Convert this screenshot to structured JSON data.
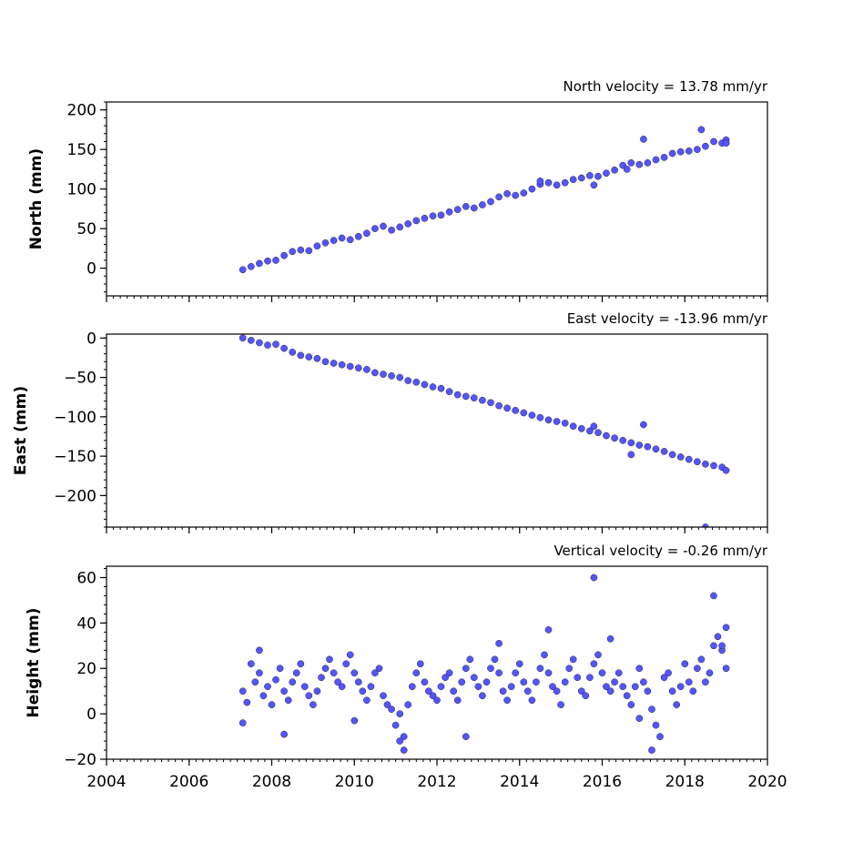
{
  "chart_data": [
    {
      "type": "scatter",
      "title": "North velocity = 13.78 mm/yr",
      "xlabel": "",
      "ylabel": "North (mm)",
      "xlim": [
        2004,
        2020
      ],
      "ylim": [
        -35,
        210
      ],
      "yticks": [
        0,
        50,
        100,
        150,
        200
      ],
      "xticks": [
        2004,
        2006,
        2008,
        2010,
        2012,
        2014,
        2016,
        2018,
        2020
      ],
      "show_xtick_labels": false,
      "grid": false,
      "marker_color": "#5555ff",
      "marker_edge": "#222244",
      "series": [
        {
          "x": [
            2007.3,
            2007.5,
            2007.7,
            2007.9,
            2008.1,
            2008.3,
            2008.5,
            2008.7,
            2008.9,
            2009.1,
            2009.3,
            2009.5,
            2009.7,
            2009.9,
            2010.1,
            2010.3,
            2010.5,
            2010.7,
            2010.9,
            2011.1,
            2011.3,
            2011.5,
            2011.7,
            2011.9,
            2012.1,
            2012.3,
            2012.5,
            2012.7,
            2012.9,
            2013.1,
            2013.3,
            2013.5,
            2013.7,
            2013.9,
            2014.1,
            2014.3,
            2014.5,
            2014.7,
            2014.9,
            2015.1,
            2015.3,
            2015.5,
            2015.7,
            2015.9,
            2016.1,
            2016.3,
            2016.5,
            2016.7,
            2016.9,
            2017.1,
            2017.3,
            2017.5,
            2017.7,
            2017.9,
            2018.1,
            2018.3,
            2018.5,
            2018.7,
            2018.9,
            2019.0,
            2017.0,
            2018.4,
            2016.6,
            2014.5,
            2015.8,
            2019.0
          ],
          "y": [
            -2,
            2,
            6,
            9,
            10,
            16,
            21,
            23,
            22,
            28,
            32,
            35,
            38,
            36,
            40,
            44,
            50,
            53,
            48,
            52,
            56,
            60,
            63,
            66,
            67,
            71,
            74,
            78,
            76,
            80,
            84,
            90,
            94,
            92,
            95,
            100,
            106,
            108,
            105,
            108,
            112,
            114,
            117,
            116,
            120,
            124,
            130,
            133,
            131,
            133,
            137,
            140,
            145,
            147,
            148,
            150,
            154,
            160,
            158,
            162,
            163,
            175,
            125,
            110,
            105,
            158
          ]
        }
      ]
    },
    {
      "type": "scatter",
      "title": "East velocity = -13.96 mm/yr",
      "xlabel": "",
      "ylabel": "East (mm)",
      "xlim": [
        2004,
        2020
      ],
      "ylim": [
        -240,
        5
      ],
      "yticks": [
        0,
        -50,
        -100,
        -150,
        -200
      ],
      "xticks": [
        2004,
        2006,
        2008,
        2010,
        2012,
        2014,
        2016,
        2018,
        2020
      ],
      "show_xtick_labels": false,
      "grid": false,
      "marker_color": "#5555ff",
      "marker_edge": "#222244",
      "series": [
        {
          "x": [
            2007.3,
            2007.5,
            2007.7,
            2007.9,
            2008.1,
            2008.3,
            2008.5,
            2008.7,
            2008.9,
            2009.1,
            2009.3,
            2009.5,
            2009.7,
            2009.9,
            2010.1,
            2010.3,
            2010.5,
            2010.7,
            2010.9,
            2011.1,
            2011.3,
            2011.5,
            2011.7,
            2011.9,
            2012.1,
            2012.3,
            2012.5,
            2012.7,
            2012.9,
            2013.1,
            2013.3,
            2013.5,
            2013.7,
            2013.9,
            2014.1,
            2014.3,
            2014.5,
            2014.7,
            2014.9,
            2015.1,
            2015.3,
            2015.5,
            2015.7,
            2015.9,
            2016.1,
            2016.3,
            2016.5,
            2016.7,
            2016.9,
            2017.1,
            2017.3,
            2017.5,
            2017.7,
            2017.9,
            2018.1,
            2018.3,
            2018.5,
            2018.7,
            2018.9,
            2019.0,
            2017.0,
            2018.5,
            2016.7,
            2015.8
          ],
          "y": [
            0,
            -3,
            -6,
            -9,
            -8,
            -13,
            -18,
            -22,
            -24,
            -26,
            -30,
            -32,
            -34,
            -36,
            -38,
            -40,
            -44,
            -46,
            -48,
            -50,
            -54,
            -56,
            -59,
            -62,
            -64,
            -68,
            -72,
            -74,
            -76,
            -79,
            -82,
            -86,
            -89,
            -92,
            -95,
            -98,
            -101,
            -104,
            -106,
            -108,
            -112,
            -115,
            -118,
            -120,
            -124,
            -127,
            -130,
            -133,
            -136,
            -138,
            -141,
            -144,
            -148,
            -151,
            -154,
            -157,
            -160,
            -162,
            -164,
            -168,
            -110,
            -240,
            -148,
            -112
          ]
        }
      ]
    },
    {
      "type": "scatter",
      "title": "Vertical velocity = -0.26 mm/yr",
      "xlabel": "",
      "ylabel": "Height (mm)",
      "xlim": [
        2004,
        2020
      ],
      "ylim": [
        -20,
        65
      ],
      "yticks": [
        -20,
        0,
        20,
        40,
        60
      ],
      "xticks": [
        2004,
        2006,
        2008,
        2010,
        2012,
        2014,
        2016,
        2018,
        2020
      ],
      "show_xtick_labels": true,
      "grid": false,
      "marker_color": "#5555ff",
      "marker_edge": "#222244",
      "series": [
        {
          "x": [
            2007.3,
            2007.4,
            2007.5,
            2007.6,
            2007.7,
            2007.8,
            2007.9,
            2008.0,
            2008.1,
            2008.2,
            2008.3,
            2008.4,
            2008.5,
            2008.6,
            2008.7,
            2008.8,
            2008.9,
            2009.0,
            2009.1,
            2009.2,
            2009.3,
            2009.4,
            2009.5,
            2009.6,
            2009.7,
            2009.8,
            2009.9,
            2010.0,
            2010.1,
            2010.2,
            2010.3,
            2010.4,
            2010.5,
            2010.6,
            2010.7,
            2010.8,
            2010.9,
            2011.0,
            2011.1,
            2011.2,
            2011.3,
            2011.4,
            2011.5,
            2011.6,
            2011.7,
            2011.8,
            2011.9,
            2012.0,
            2012.1,
            2012.2,
            2012.3,
            2012.4,
            2012.5,
            2012.6,
            2012.7,
            2012.8,
            2012.9,
            2013.0,
            2013.1,
            2013.2,
            2013.3,
            2013.4,
            2013.5,
            2013.6,
            2013.7,
            2013.8,
            2013.9,
            2014.0,
            2014.1,
            2014.2,
            2014.3,
            2014.4,
            2014.5,
            2014.6,
            2014.7,
            2014.8,
            2014.9,
            2015.0,
            2015.1,
            2015.2,
            2015.3,
            2015.4,
            2015.5,
            2015.6,
            2015.7,
            2015.8,
            2015.9,
            2016.0,
            2016.1,
            2016.2,
            2016.3,
            2016.4,
            2016.5,
            2016.6,
            2016.7,
            2016.8,
            2016.9,
            2017.0,
            2017.1,
            2017.2,
            2017.3,
            2017.4,
            2017.5,
            2017.6,
            2017.7,
            2017.8,
            2017.9,
            2018.0,
            2018.1,
            2018.2,
            2018.3,
            2018.4,
            2018.5,
            2018.6,
            2018.7,
            2018.8,
            2018.9,
            2019.0,
            2015.8,
            2018.7,
            2014.7,
            2011.2,
            2017.2,
            2011.1,
            2019.0,
            2008.3,
            2016.2,
            2012.7,
            2007.3,
            2010.0,
            2007.7,
            2013.5,
            2018.9,
            2016.9
          ],
          "y": [
            10,
            5,
            22,
            14,
            18,
            8,
            12,
            4,
            15,
            20,
            10,
            6,
            14,
            18,
            22,
            12,
            8,
            4,
            10,
            16,
            20,
            24,
            18,
            14,
            12,
            22,
            26,
            18,
            14,
            10,
            6,
            12,
            18,
            20,
            8,
            4,
            2,
            -5,
            0,
            -10,
            4,
            12,
            18,
            22,
            14,
            10,
            8,
            6,
            12,
            16,
            18,
            10,
            6,
            14,
            20,
            24,
            16,
            12,
            8,
            14,
            20,
            24,
            18,
            10,
            6,
            12,
            18,
            22,
            14,
            10,
            6,
            14,
            20,
            26,
            18,
            12,
            10,
            4,
            14,
            20,
            24,
            16,
            10,
            8,
            16,
            22,
            26,
            18,
            12,
            10,
            14,
            18,
            12,
            8,
            4,
            12,
            20,
            14,
            10,
            2,
            -5,
            -10,
            16,
            18,
            10,
            4,
            12,
            22,
            14,
            10,
            20,
            24,
            14,
            18,
            30,
            34,
            28,
            20,
            60,
            52,
            37,
            -16,
            -16,
            -12,
            38,
            -9,
            33,
            -10,
            -4,
            -3,
            28,
            31,
            30,
            -2
          ]
        }
      ]
    }
  ]
}
